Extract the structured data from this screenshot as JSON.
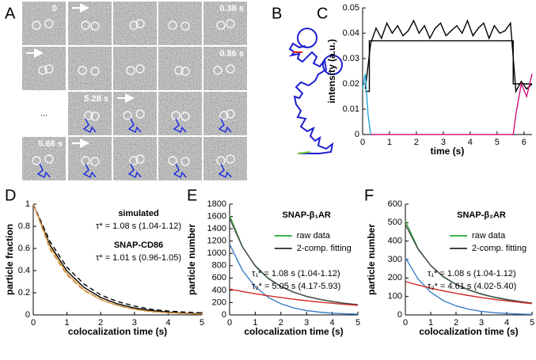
{
  "panel_labels": [
    "A",
    "B",
    "C",
    "D",
    "E",
    "F"
  ],
  "panel_a": {
    "time_labels": [
      "0",
      "0.38 s",
      "0.86 s",
      "5.28 s",
      "5.66 s"
    ],
    "ellipsis": "..."
  },
  "chart_data": [
    {
      "type": "line",
      "xlabel": "time (s)",
      "ylabel": "intensity (a.u.)",
      "xlim": [
        0,
        6.3
      ],
      "xticks": [
        0,
        1,
        2,
        3,
        4,
        5,
        6
      ],
      "ylim": [
        0,
        0.05
      ],
      "yticks": [
        0,
        0.01,
        0.02,
        0.03,
        0.04,
        0.05
      ],
      "series": [
        {
          "color": "#000000",
          "x": [
            0.1,
            0.3,
            0.5,
            0.7,
            0.9,
            1.1,
            1.3,
            1.5,
            1.7,
            1.9,
            2.1,
            2.3,
            2.5,
            2.7,
            2.9,
            3.1,
            3.3,
            3.5,
            3.7,
            3.9,
            4.1,
            4.3,
            4.5,
            4.7,
            4.9,
            5.1,
            5.3,
            5.5,
            5.7,
            5.9,
            6.1,
            6.3
          ],
          "values": [
            0.018,
            0.036,
            0.042,
            0.038,
            0.044,
            0.04,
            0.043,
            0.039,
            0.041,
            0.045,
            0.04,
            0.043,
            0.038,
            0.042,
            0.044,
            0.039,
            0.041,
            0.043,
            0.04,
            0.045,
            0.039,
            0.042,
            0.044,
            0.038,
            0.043,
            0.04,
            0.041,
            0.044,
            0.017,
            0.021,
            0.018,
            0.02
          ]
        },
        {
          "color": "#000000",
          "x": [
            0.1,
            0.25,
            0.25,
            5.6,
            5.6,
            6.3
          ],
          "values": [
            0.017,
            0.017,
            0.037,
            0.037,
            0.02,
            0.02
          ]
        },
        {
          "color": "#29a8d8",
          "x": [
            0,
            0.1,
            0.2,
            0.3
          ],
          "values": [
            0.018,
            0.024,
            0.008,
            0
          ]
        },
        {
          "color": "#d4127e",
          "x": [
            0.3,
            5.6,
            5.7,
            5.9,
            6.1,
            6.3
          ],
          "values": [
            0,
            0,
            0.008,
            0.02,
            0.015,
            0.024
          ]
        }
      ]
    },
    {
      "type": "line",
      "xlabel": "colocalization time (s)",
      "ylabel": "particle fraction",
      "xlim": [
        0,
        5
      ],
      "xticks": [
        0,
        1,
        2,
        3,
        4,
        5
      ],
      "ylim": [
        0,
        1
      ],
      "yticks": [
        0,
        0.2,
        0.4,
        0.6,
        0.8,
        1
      ],
      "x": [
        0,
        0.5,
        1,
        1.5,
        2,
        2.5,
        3,
        3.5,
        4,
        4.5,
        5
      ],
      "series": [
        {
          "color": "#000000",
          "values": [
            1,
            0.629,
            0.396,
            0.249,
            0.157,
            0.099,
            0.062,
            0.039,
            0.025,
            0.015,
            0.0097
          ]
        },
        {
          "color": "#000000",
          "dash": true,
          "values": [
            1,
            0.66,
            0.43,
            0.28,
            0.18,
            0.12,
            0.08,
            0.05,
            0.035,
            0.025,
            0.018
          ]
        },
        {
          "color": "#e8a33d",
          "values": [
            1,
            0.61,
            0.372,
            0.227,
            0.138,
            0.084,
            0.051,
            0.031,
            0.019,
            0.012,
            0.007
          ]
        },
        {
          "color": "#c98a4a",
          "dash": true,
          "values": [
            1,
            0.59,
            0.36,
            0.22,
            0.14,
            0.085,
            0.05,
            0.03,
            0.02,
            0.012,
            0.008
          ]
        }
      ],
      "annotations": [
        {
          "text": "simulated",
          "color": "#000000",
          "bold": true
        },
        {
          "text": "τ* = 1.08 s (1.04-1.12)",
          "color": "#000000"
        },
        {
          "text": "SNAP-CD86",
          "color": "#e8a33d",
          "bold": true
        },
        {
          "text": "τ* = 1.01 s (0.96-1.05)",
          "color": "#000000"
        }
      ]
    },
    {
      "type": "line",
      "title": "SNAP-β₁AR",
      "xlabel": "colocalization time (s)",
      "ylabel": "particle number",
      "xlim": [
        0,
        5
      ],
      "xticks": [
        0,
        1,
        2,
        3,
        4,
        5
      ],
      "ylim": [
        0,
        1800
      ],
      "yticks": [
        0,
        200,
        400,
        600,
        800,
        1000,
        1200,
        1400,
        1600,
        1800
      ],
      "x": [
        0,
        0.5,
        1,
        1.5,
        2,
        2.5,
        3,
        3.5,
        4,
        4.5,
        5
      ],
      "series": [
        {
          "name": "raw data",
          "color": "#3cb44b",
          "values": [
            1620,
            1110,
            790,
            590,
            460,
            370,
            300,
            255,
            215,
            185,
            165
          ]
        },
        {
          "name": "2-comp. fitting",
          "color": "#444444",
          "values": [
            1570,
            1104,
            799,
            598,
            462,
            368,
            301,
            253,
            217,
            189,
            166
          ]
        },
        {
          "color": "#3b7fc4",
          "values": [
            1150,
            724,
            456,
            287,
            181,
            113,
            71,
            45,
            28,
            18,
            11
          ]
        },
        {
          "color": "#d62728",
          "values": [
            420,
            380,
            343,
            311,
            281,
            255,
            230,
            208,
            189,
            171,
            155
          ]
        }
      ],
      "annotations": [
        {
          "text": "τ₁* = 1.08 s (1.04-1.12)",
          "color": "#3b7fc4"
        },
        {
          "text": "τ₂* = 5.05 s (4.17-5.93)",
          "color": "#d62728"
        }
      ]
    },
    {
      "type": "line",
      "title": "SNAP-β₂AR",
      "xlabel": "colocalization time (s)",
      "ylabel": "particle number",
      "xlim": [
        0,
        5
      ],
      "xticks": [
        0,
        1,
        2,
        3,
        4,
        5
      ],
      "ylim": [
        0,
        600
      ],
      "yticks": [
        0,
        100,
        200,
        300,
        400,
        500,
        600
      ],
      "x": [
        0,
        0.5,
        1,
        1.5,
        2,
        2.5,
        3,
        3.5,
        4,
        4.5,
        5
      ],
      "series": [
        {
          "name": "raw data",
          "color": "#3cb44b",
          "values": [
            510,
            360,
            268,
            205,
            165,
            135,
            112,
            95,
            82,
            70,
            62
          ]
        },
        {
          "name": "2-comp. fitting",
          "color": "#444444",
          "values": [
            490,
            357,
            268,
            207,
            166,
            136,
            113,
            96.5,
            83.6,
            72.8,
            64
          ]
        },
        {
          "color": "#3b7fc4",
          "values": [
            310,
            195,
            123,
            77,
            49,
            31,
            19,
            12,
            7.6,
            4.8,
            3
          ]
        },
        {
          "color": "#d62728",
          "values": [
            180,
            162,
            145,
            130,
            117,
            105,
            94,
            84.5,
            76,
            68,
            61
          ]
        }
      ],
      "annotations": [
        {
          "text": "τ₁* = 1.08 s (1.04-1.12)",
          "color": "#3b7fc4"
        },
        {
          "text": "τ₂* = 4.61 s (4.02-5.40)",
          "color": "#d62728"
        }
      ]
    }
  ]
}
